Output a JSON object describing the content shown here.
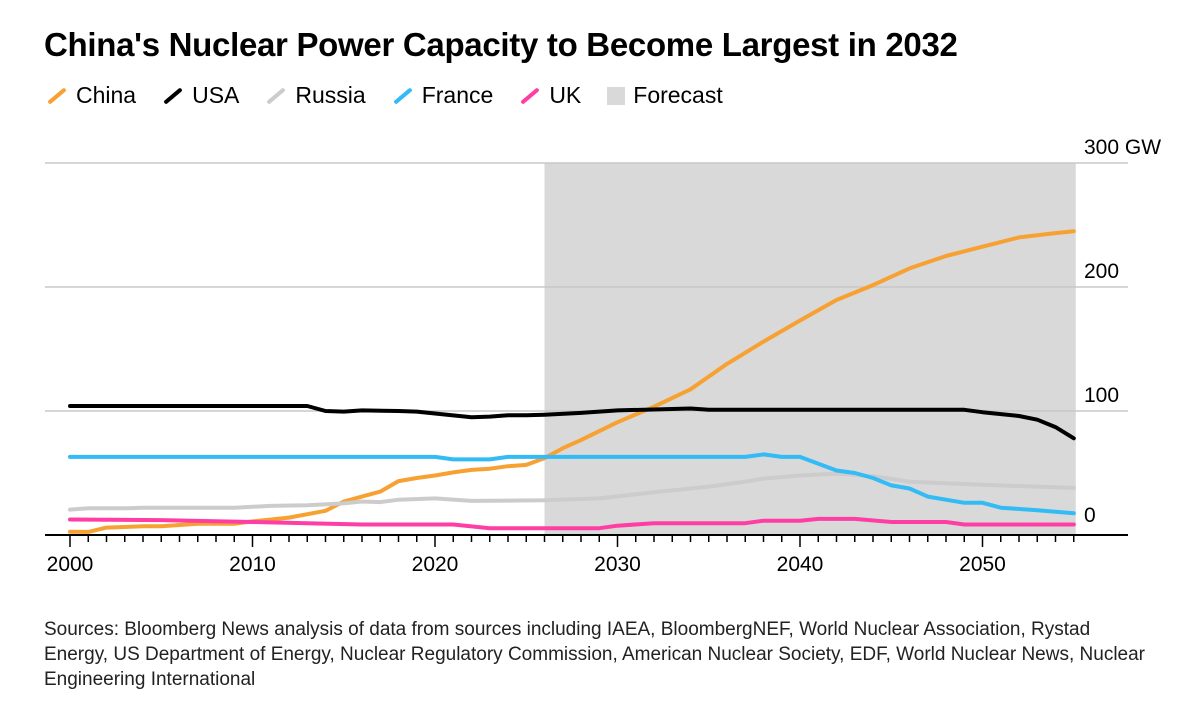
{
  "title": "China's Nuclear Power Capacity to Become Largest in 2032",
  "legend": [
    {
      "label": "China",
      "color": "#f7a133",
      "kind": "line"
    },
    {
      "label": "USA",
      "color": "#000000",
      "kind": "line"
    },
    {
      "label": "Russia",
      "color": "#cccccc",
      "kind": "line"
    },
    {
      "label": "France",
      "color": "#33bbf5",
      "kind": "line"
    },
    {
      "label": "UK",
      "color": "#ff3ea5",
      "kind": "line"
    },
    {
      "label": "Forecast",
      "color": "#d9d9d9",
      "kind": "box"
    }
  ],
  "sources": "Sources: Bloomberg News analysis of data from sources including IAEA, BloombergNEF, World Nuclear Association, Rystad Energy, US Department of Energy, Nuclear Regulatory Commission, American Nuclear Society, EDF, World Nuclear News, Nuclear Engineering International",
  "chart_data": {
    "type": "line",
    "title": "China's Nuclear Power Capacity to Become Largest in 2032",
    "xlabel": "",
    "ylabel": "",
    "xlim": [
      2000,
      2055
    ],
    "ylim": [
      0,
      300
    ],
    "x_ticks": [
      2000,
      2010,
      2020,
      2030,
      2040,
      2050
    ],
    "y_ticks": [
      {
        "value": 300,
        "label": "300 GW"
      },
      {
        "value": 200,
        "label": "200"
      },
      {
        "value": 100,
        "label": "100"
      },
      {
        "value": 0,
        "label": "0"
      }
    ],
    "y_axis_side": "right",
    "grid": true,
    "legend_position": "top-left",
    "forecast_range": [
      2026,
      2055
    ],
    "series": [
      {
        "name": "China",
        "color": "#f7a133",
        "points": [
          [
            2000,
            2.7
          ],
          [
            2001,
            2.5
          ],
          [
            2002,
            6
          ],
          [
            2004,
            7
          ],
          [
            2005,
            7
          ],
          [
            2007,
            9
          ],
          [
            2009,
            9
          ],
          [
            2010,
            11
          ],
          [
            2012,
            14
          ],
          [
            2014,
            19.5
          ],
          [
            2015,
            27
          ],
          [
            2016,
            31
          ],
          [
            2017,
            35
          ],
          [
            2018,
            43.5
          ],
          [
            2019,
            46
          ],
          [
            2020,
            48
          ],
          [
            2021,
            50.5
          ],
          [
            2022,
            52.5
          ],
          [
            2023,
            53.5
          ],
          [
            2024,
            55.5
          ],
          [
            2025,
            56.5
          ],
          [
            2026,
            62
          ],
          [
            2027,
            70
          ],
          [
            2028,
            76.5
          ],
          [
            2030,
            91
          ],
          [
            2032,
            103.5
          ],
          [
            2034,
            117.5
          ],
          [
            2036,
            138
          ],
          [
            2038,
            156
          ],
          [
            2040,
            173
          ],
          [
            2042,
            189.5
          ],
          [
            2044,
            201.5
          ],
          [
            2046,
            215
          ],
          [
            2048,
            225
          ],
          [
            2050,
            232.5
          ],
          [
            2052,
            240
          ],
          [
            2054,
            243.5
          ],
          [
            2055,
            245
          ]
        ]
      },
      {
        "name": "USA",
        "color": "#000000",
        "points": [
          [
            2000,
            104
          ],
          [
            2013,
            104
          ],
          [
            2014,
            100
          ],
          [
            2015,
            99.5
          ],
          [
            2016,
            100.5
          ],
          [
            2018,
            100
          ],
          [
            2019,
            99.5
          ],
          [
            2020,
            98
          ],
          [
            2022,
            95
          ],
          [
            2023,
            95.5
          ],
          [
            2024,
            96.5
          ],
          [
            2025,
            96.5
          ],
          [
            2026,
            97
          ],
          [
            2028,
            98.5
          ],
          [
            2030,
            100.5
          ],
          [
            2034,
            102
          ],
          [
            2035,
            101
          ],
          [
            2049,
            101
          ],
          [
            2050,
            99
          ],
          [
            2052,
            96
          ],
          [
            2053,
            93
          ],
          [
            2054,
            87
          ],
          [
            2055,
            78
          ]
        ]
      },
      {
        "name": "Russia",
        "color": "#cccccc",
        "points": [
          [
            2000,
            20.5
          ],
          [
            2001,
            21.5
          ],
          [
            2003,
            21.5
          ],
          [
            2004,
            22
          ],
          [
            2009,
            22
          ],
          [
            2011,
            23.5
          ],
          [
            2013,
            24
          ],
          [
            2015,
            25.5
          ],
          [
            2016,
            27
          ],
          [
            2017,
            26.5
          ],
          [
            2018,
            28.5
          ],
          [
            2020,
            29.5
          ],
          [
            2022,
            27.5
          ],
          [
            2026,
            28
          ],
          [
            2029,
            29.5
          ],
          [
            2032,
            34.5
          ],
          [
            2035,
            39
          ],
          [
            2037,
            43
          ],
          [
            2038,
            45.5
          ],
          [
            2040,
            48
          ],
          [
            2042,
            49.5
          ],
          [
            2044,
            47.5
          ],
          [
            2046,
            43
          ],
          [
            2050,
            40.5
          ],
          [
            2055,
            38
          ]
        ]
      },
      {
        "name": "France",
        "color": "#33bbf5",
        "points": [
          [
            2000,
            63
          ],
          [
            2020,
            63
          ],
          [
            2021,
            61
          ],
          [
            2023,
            61
          ],
          [
            2024,
            63
          ],
          [
            2037,
            63
          ],
          [
            2038,
            65
          ],
          [
            2039,
            63
          ],
          [
            2040,
            63
          ],
          [
            2042,
            52
          ],
          [
            2043,
            50
          ],
          [
            2044,
            46
          ],
          [
            2045,
            40
          ],
          [
            2046,
            37.5
          ],
          [
            2047,
            31
          ],
          [
            2049,
            26
          ],
          [
            2050,
            26
          ],
          [
            2051,
            22
          ],
          [
            2053,
            20
          ],
          [
            2055,
            17.5
          ]
        ]
      },
      {
        "name": "UK",
        "color": "#ff3ea5",
        "points": [
          [
            2000,
            12.5
          ],
          [
            2005,
            12
          ],
          [
            2010,
            10.5
          ],
          [
            2013,
            9.5
          ],
          [
            2016,
            8.5
          ],
          [
            2021,
            8.5
          ],
          [
            2023,
            5.5
          ],
          [
            2029,
            5.5
          ],
          [
            2030,
            7.5
          ],
          [
            2032,
            9.5
          ],
          [
            2037,
            9.5
          ],
          [
            2038,
            11.5
          ],
          [
            2040,
            11.5
          ],
          [
            2041,
            13
          ],
          [
            2043,
            13
          ],
          [
            2045,
            10.5
          ],
          [
            2048,
            10.5
          ],
          [
            2049,
            8.5
          ],
          [
            2055,
            8.5
          ]
        ]
      }
    ]
  }
}
